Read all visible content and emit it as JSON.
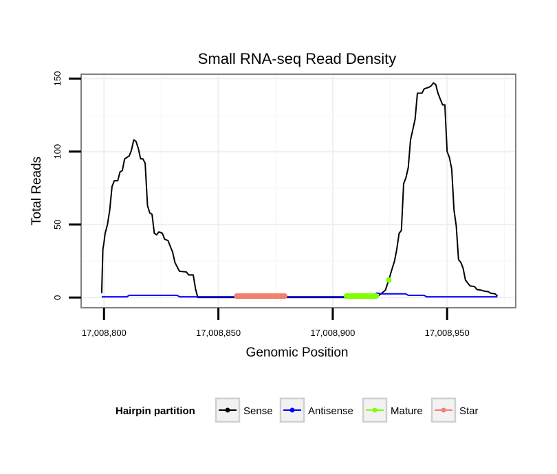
{
  "chart_data": {
    "type": "line",
    "title": "Small RNA-seq Read Density",
    "xlabel": "Genomic Position",
    "ylabel": "Total Reads",
    "xlim": [
      17008790,
      17008980
    ],
    "ylim": [
      -7,
      153
    ],
    "x_ticks": [
      17008800,
      17008850,
      17008900,
      17008950
    ],
    "x_tick_labels": [
      "17,008,800",
      "17,008,850",
      "17,008,900",
      "17,008,950"
    ],
    "y_ticks": [
      0,
      50,
      100,
      150
    ],
    "y_tick_labels": [
      "0",
      "50",
      "100",
      "150"
    ],
    "grid": true,
    "legend": {
      "title": "Hairpin partition",
      "position": "bottom",
      "entries": [
        {
          "label": "Sense",
          "color": "#000000"
        },
        {
          "label": "Antisense",
          "color": "#0000ff"
        },
        {
          "label": "Mature",
          "color": "#7fff00"
        },
        {
          "label": "Star",
          "color": "#f08070"
        }
      ]
    },
    "series": [
      {
        "name": "Sense",
        "color": "#000000",
        "points": [
          [
            17008799,
            3
          ],
          [
            17008799.5,
            33
          ],
          [
            17008800,
            38
          ],
          [
            17008800.5,
            44
          ],
          [
            17008801.5,
            50
          ],
          [
            17008802.5,
            60
          ],
          [
            17008803.5,
            76
          ],
          [
            17008804.5,
            80
          ],
          [
            17008806,
            80
          ],
          [
            17008807,
            86
          ],
          [
            17008808,
            87
          ],
          [
            17008809,
            95
          ],
          [
            17008811,
            97
          ],
          [
            17008812,
            101
          ],
          [
            17008813,
            108
          ],
          [
            17008814,
            107
          ],
          [
            17008815,
            102
          ],
          [
            17008816,
            95
          ],
          [
            17008817,
            95
          ],
          [
            17008818,
            92
          ],
          [
            17008819,
            63
          ],
          [
            17008820,
            58
          ],
          [
            17008821,
            57
          ],
          [
            17008822,
            44
          ],
          [
            17008823,
            43
          ],
          [
            17008824,
            45
          ],
          [
            17008825.5,
            44
          ],
          [
            17008826.5,
            40
          ],
          [
            17008828,
            39
          ],
          [
            17008829,
            35
          ],
          [
            17008830,
            31
          ],
          [
            17008831,
            24
          ],
          [
            17008832,
            21
          ],
          [
            17008833,
            18
          ],
          [
            17008836,
            17.5
          ],
          [
            17008837,
            15.5
          ],
          [
            17008839,
            15.5
          ],
          [
            17008840,
            6
          ],
          [
            17008841,
            0
          ],
          [
            17008848,
            0
          ],
          [
            17008858,
            0
          ],
          [
            17008879,
            0
          ],
          [
            17008906,
            0
          ],
          [
            17008919,
            0
          ],
          [
            17008923,
            5
          ],
          [
            17008924.5,
            12
          ],
          [
            17008926,
            20
          ],
          [
            17008927,
            25
          ],
          [
            17008928,
            33
          ],
          [
            17008929,
            44
          ],
          [
            17008930,
            46
          ],
          [
            17008931,
            78
          ],
          [
            17008932,
            82
          ],
          [
            17008933,
            89
          ],
          [
            17008934,
            108
          ],
          [
            17008935,
            115
          ],
          [
            17008936,
            122
          ],
          [
            17008937,
            140
          ],
          [
            17008939,
            140
          ],
          [
            17008940,
            143
          ],
          [
            17008942,
            144
          ],
          [
            17008943,
            145
          ],
          [
            17008944,
            147
          ],
          [
            17008945,
            146
          ],
          [
            17008946,
            140
          ],
          [
            17008947,
            136
          ],
          [
            17008948,
            132
          ],
          [
            17008949,
            132
          ],
          [
            17008950,
            100
          ],
          [
            17008951,
            96
          ],
          [
            17008952,
            88
          ],
          [
            17008953,
            60
          ],
          [
            17008954,
            49
          ],
          [
            17008955,
            26
          ],
          [
            17008956,
            24
          ],
          [
            17008957,
            20
          ],
          [
            17008958,
            12
          ],
          [
            17008959,
            10
          ],
          [
            17008960,
            8
          ],
          [
            17008962,
            7.5
          ],
          [
            17008963,
            5.5
          ],
          [
            17008965,
            5
          ],
          [
            17008966,
            4.5
          ],
          [
            17008968,
            4
          ],
          [
            17008969,
            3
          ],
          [
            17008971,
            2.5
          ],
          [
            17008972,
            1
          ]
        ]
      },
      {
        "name": "Antisense",
        "color": "#0000ff",
        "points": [
          [
            17008799,
            0.5
          ],
          [
            17008810,
            0.5
          ],
          [
            17008811,
            1.5
          ],
          [
            17008832,
            1.5
          ],
          [
            17008833,
            0.5
          ],
          [
            17008848,
            0.5
          ],
          [
            17008879,
            0.5
          ],
          [
            17008906,
            0.5
          ],
          [
            17008918,
            0.5
          ],
          [
            17008919,
            3
          ],
          [
            17008920,
            3
          ],
          [
            17008921,
            2.5
          ],
          [
            17008932,
            2.5
          ],
          [
            17008933,
            1.5
          ],
          [
            17008940,
            1.5
          ],
          [
            17008941,
            0.5
          ],
          [
            17008972,
            0.5
          ]
        ]
      },
      {
        "name": "Mature",
        "color": "#7fff00",
        "points": [
          [
            17008906,
            1
          ],
          [
            17008919,
            1
          ]
        ],
        "highlight_point": [
          17008924.5,
          12
        ]
      },
      {
        "name": "Star",
        "color": "#f08070",
        "points": [
          [
            17008858,
            1
          ],
          [
            17008879,
            1
          ]
        ]
      }
    ]
  }
}
